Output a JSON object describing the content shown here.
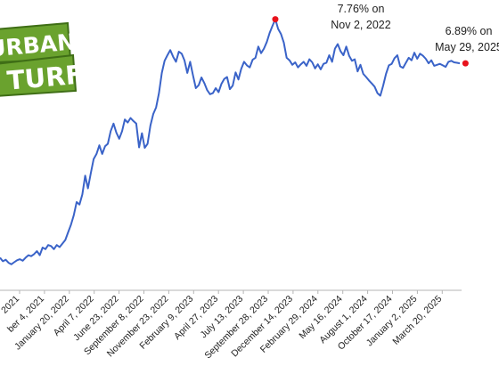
{
  "chart_data": {
    "type": "line",
    "title": "",
    "xlabel": "",
    "ylabel": "",
    "ylim": [
      2.6,
      8.0
    ],
    "grid": false,
    "legend": "none",
    "line_color": "#3a63c8",
    "highlight_color": "#e8121c",
    "x_tick_labels": [
      "2021",
      "ber 4, 2021",
      "January 20, 2022",
      "April 7, 2022",
      "June 23, 2022",
      "September 8, 2022",
      "November 23, 2022",
      "February 9, 2023",
      "April 27, 2023",
      "July 13, 2023",
      "September 28, 2023",
      "December 14, 2023",
      "February 29, 2024",
      "May 16, 2024",
      "August 1, 2024",
      "October 17, 2024",
      "January 2, 2025",
      "March 20, 2025"
    ],
    "series": [
      {
        "values": [
          3.05,
          2.98,
          3.01,
          2.95,
          2.92,
          2.96,
          3.0,
          3.02,
          2.99,
          3.05,
          3.1,
          3.08,
          3.12,
          3.18,
          3.1,
          3.25,
          3.22,
          3.3,
          3.28,
          3.22,
          3.3,
          3.26,
          3.33,
          3.4,
          3.55,
          3.7,
          3.89,
          4.15,
          4.1,
          4.3,
          4.67,
          4.42,
          4.72,
          5.0,
          5.1,
          5.27,
          5.1,
          5.25,
          5.3,
          5.55,
          5.7,
          5.52,
          5.4,
          5.55,
          5.78,
          5.72,
          5.81,
          5.75,
          5.7,
          5.23,
          5.51,
          5.22,
          5.3,
          5.66,
          5.89,
          6.02,
          6.3,
          6.7,
          6.94,
          7.05,
          7.15,
          7.02,
          6.92,
          7.12,
          7.08,
          6.95,
          6.7,
          6.92,
          6.65,
          6.4,
          6.46,
          6.61,
          6.5,
          6.36,
          6.28,
          6.3,
          6.4,
          6.32,
          6.48,
          6.58,
          6.62,
          6.38,
          6.45,
          6.71,
          6.57,
          6.78,
          6.92,
          6.85,
          6.81,
          6.96,
          7.0,
          7.22,
          7.09,
          7.18,
          7.31,
          7.49,
          7.63,
          7.76,
          7.57,
          7.47,
          7.3,
          7.0,
          6.95,
          6.86,
          6.91,
          6.81,
          6.87,
          6.92,
          6.84,
          6.97,
          6.91,
          6.79,
          6.87,
          6.77,
          6.88,
          6.9,
          7.05,
          6.92,
          7.18,
          7.27,
          7.13,
          7.05,
          7.22,
          7.04,
          6.94,
          6.97,
          6.73,
          6.86,
          6.68,
          6.62,
          6.55,
          6.49,
          6.43,
          6.3,
          6.25,
          6.45,
          6.68,
          6.85,
          6.88,
          6.99,
          7.05,
          6.83,
          6.8,
          6.9,
          7.0,
          6.95,
          7.1,
          6.98,
          7.08,
          7.04,
          6.98,
          6.89,
          6.95,
          6.84,
          6.86,
          6.88,
          6.85,
          6.82,
          6.92,
          6.94,
          6.91,
          6.9,
          6.89
        ],
        "highlights": [
          {
            "index": 97,
            "value": 7.76,
            "label": [
              "7.76% on",
              "Nov 2, 2022"
            ]
          },
          {
            "index": 164,
            "value": 6.89,
            "label": [
              "6.89% on",
              "May 29, 2025"
            ]
          }
        ]
      }
    ]
  },
  "logo": {
    "line1": "URBAN",
    "line2": "TURF",
    "color": "#6aa22e",
    "dark": "#3f6e16"
  }
}
